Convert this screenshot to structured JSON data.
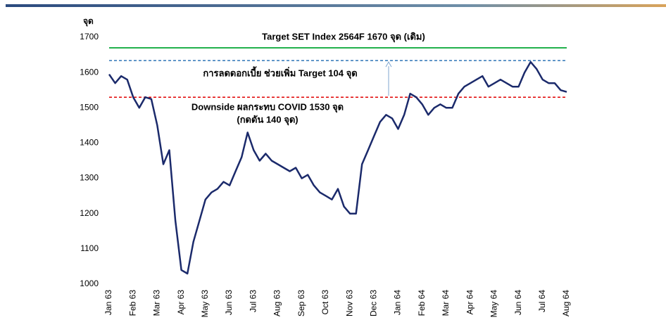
{
  "chart_data": {
    "type": "line",
    "y_axis_label": "จุด",
    "ylim": [
      1000,
      1700
    ],
    "yticks": [
      1000,
      1100,
      1200,
      1300,
      1400,
      1500,
      1600,
      1700
    ],
    "categories": [
      "Jan 63",
      null,
      null,
      null,
      "Feb 63",
      null,
      null,
      null,
      "Mar 63",
      null,
      null,
      null,
      "Apr 63",
      null,
      null,
      null,
      "May 63",
      null,
      null,
      null,
      "Jun 63",
      null,
      null,
      null,
      "Jul 63",
      null,
      null,
      null,
      "Aug 63",
      null,
      null,
      null,
      "Sep 63",
      null,
      null,
      null,
      "Oct 63",
      null,
      null,
      null,
      "Nov 63",
      null,
      null,
      null,
      "Dec 63",
      null,
      null,
      null,
      "Jan 64",
      null,
      null,
      null,
      "Feb 64",
      null,
      null,
      null,
      "Mar 64",
      null,
      null,
      null,
      "Apr 64",
      null,
      null,
      null,
      "May 64",
      null,
      null,
      null,
      "Jun 64",
      null,
      null,
      null,
      "Jul 64",
      null,
      null,
      null,
      "Aug 64"
    ],
    "series": [
      {
        "color": "#1b2a6b",
        "values": [
          1595,
          1570,
          1590,
          1580,
          1530,
          1500,
          1530,
          1525,
          1450,
          1340,
          1380,
          1180,
          1040,
          1030,
          1120,
          1180,
          1240,
          1260,
          1270,
          1290,
          1280,
          1320,
          1360,
          1430,
          1380,
          1350,
          1370,
          1350,
          1340,
          1330,
          1320,
          1330,
          1300,
          1310,
          1280,
          1260,
          1250,
          1240,
          1270,
          1220,
          1200,
          1200,
          1340,
          1380,
          1420,
          1460,
          1480,
          1470,
          1440,
          1480,
          1540,
          1530,
          1510,
          1480,
          1500,
          1510,
          1500,
          1500,
          1540,
          1560,
          1570,
          1580,
          1590,
          1560,
          1570,
          1580,
          1570,
          1560,
          1560,
          1600,
          1630,
          1610,
          1580,
          1570,
          1570,
          1550,
          1545
        ]
      }
    ],
    "reference_lines": [
      {
        "value": 1670,
        "color": "#22b14c",
        "dashed": false
      },
      {
        "value": 1634,
        "color": "#2e75b6",
        "dashed": true
      },
      {
        "value": 1530,
        "color": "#e00000",
        "dashed": true
      }
    ],
    "annotations": [
      {
        "text": "Target SET Index 2564F  1670 จุด (เดิม)",
        "color": "#1a9a3a"
      },
      {
        "text": "การลดดอกเบี้ย ช่วยเพิ่ม Target 104 จุด",
        "color": "#2e75b6"
      },
      {
        "text": "Downside ผลกระทบ COVID    1530 จุด",
        "color": "#e00000"
      },
      {
        "text": "(กดดัน 140 จุด)",
        "color": "#e00000"
      }
    ]
  }
}
